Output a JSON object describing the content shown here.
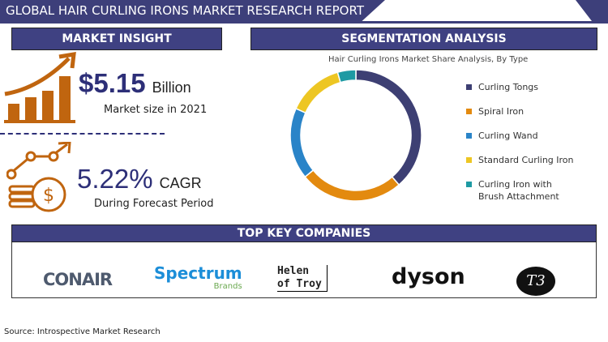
{
  "title": "GLOBAL HAIR CURLING IRONS MARKET RESEARCH REPORT",
  "market_insight": {
    "header": "MARKET INSIGHT",
    "size_value": "$5.15",
    "size_unit": "Billion",
    "size_label": "Market size in 2021",
    "cagr_value": "5.22%",
    "cagr_unit": "CAGR",
    "cagr_label": "During Forecast Period",
    "icons": [
      "bar-growth-icon",
      "coins-growth-icon"
    ],
    "accent": "#c0650f"
  },
  "segmentation": {
    "header": "SEGMENTATION ANALYSIS"
  },
  "chart_data": {
    "type": "pie",
    "donut": true,
    "title": "Hair Curling Irons Market Share Analysis, By Type",
    "legend_position": "right",
    "categories": [
      "Curling Tongs",
      "Spiral Iron",
      "Curling Wand",
      "Standard Curling Iron",
      "Curling Iron with Brush Attachment"
    ],
    "legend_lines": [
      [
        "Curling Tongs"
      ],
      [
        "Spiral Iron"
      ],
      [
        "Curling Wand"
      ],
      [
        "Standard Curling Iron"
      ],
      [
        "Curling Iron with",
        "Brush Attachment"
      ]
    ],
    "values": [
      38.6,
      25.5,
      17.6,
      13.8,
      4.5
    ],
    "colors": [
      "#3d3f73",
      "#e38a0f",
      "#2a84c8",
      "#edc623",
      "#1e9aa3"
    ]
  },
  "companies": {
    "header": "TOP KEY COMPANIES",
    "logos": [
      "CONAIR",
      "Spectrum",
      "Brands",
      "Helen",
      "of Troy",
      "dyson",
      "T3"
    ]
  },
  "source": "Source: Introspective Market Research"
}
